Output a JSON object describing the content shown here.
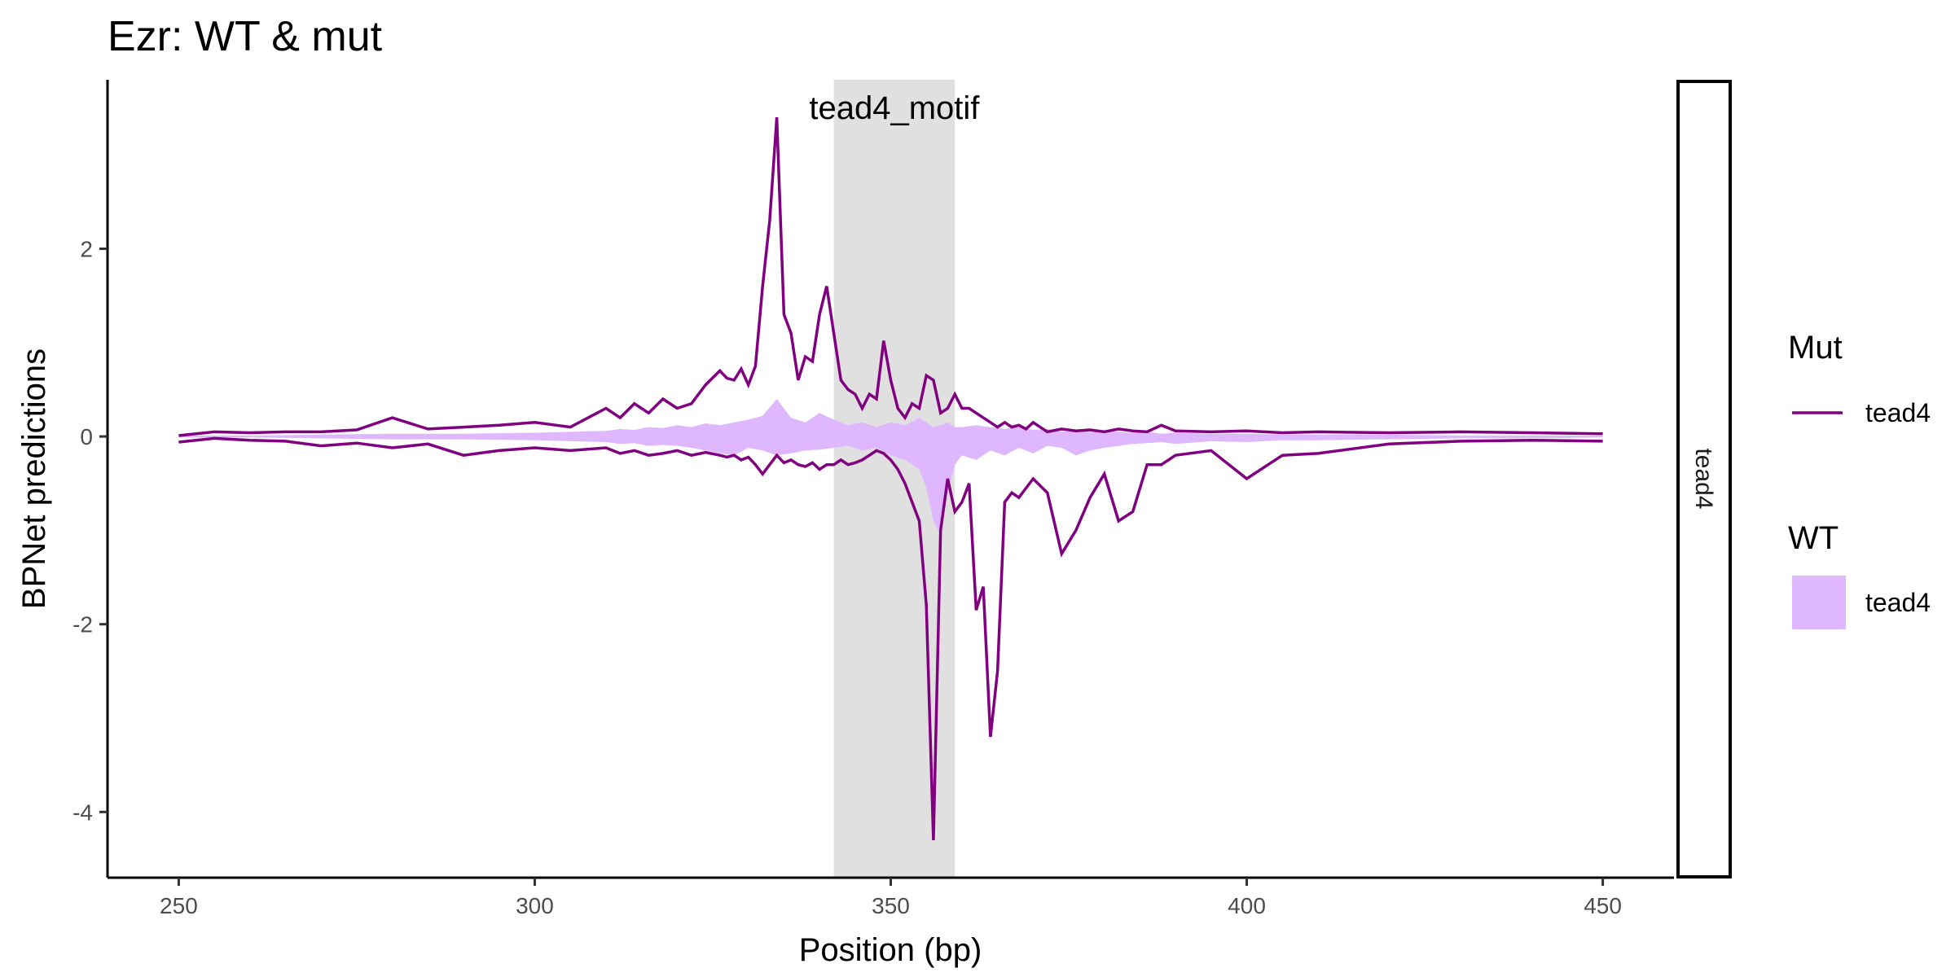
{
  "chart_data": {
    "type": "line",
    "title": "Ezr: WT & mut",
    "xlabel": "Position (bp)",
    "ylabel": "BPNet predictions",
    "xlim": [
      240,
      460
    ],
    "ylim": [
      -4.7,
      3.8
    ],
    "x_ticks": [
      250,
      300,
      350,
      400,
      450
    ],
    "y_ticks": [
      -4,
      -2,
      0,
      2
    ],
    "y_tick_labels": [
      "-4",
      "-2",
      "0",
      "2"
    ],
    "grid": false,
    "legend_position": "right",
    "facet_label": "tead4",
    "colors": {
      "mut": "#800080",
      "wt": "#dfb7ff",
      "motif_region": "#e0e0e0"
    },
    "annotation": {
      "label": "tead4_motif",
      "x_start": 342,
      "x_end": 359
    },
    "legend": {
      "mut": {
        "title": "Mut",
        "entry": "tead4"
      },
      "wt": {
        "title": "WT",
        "entry": "tead4"
      }
    },
    "series": [
      {
        "name": "tead4",
        "group": "Mut",
        "style": "line",
        "x": [
          250,
          255,
          260,
          265,
          270,
          275,
          280,
          285,
          290,
          295,
          300,
          305,
          310,
          312,
          314,
          316,
          318,
          320,
          322,
          324,
          326,
          327,
          328,
          329,
          330,
          331,
          332,
          333,
          334,
          335,
          336,
          337,
          338,
          339,
          340,
          341,
          342,
          343,
          344,
          345,
          346,
          347,
          348,
          349,
          350,
          351,
          352,
          353,
          354,
          355,
          356,
          357,
          358,
          359,
          360,
          361,
          362,
          363,
          364,
          365,
          366,
          367,
          368,
          369,
          370,
          372,
          374,
          376,
          378,
          380,
          382,
          384,
          386,
          388,
          390,
          395,
          400,
          405,
          410,
          420,
          430,
          440,
          450
        ],
        "upper": [
          0.01,
          0.05,
          0.04,
          0.05,
          0.05,
          0.07,
          0.2,
          0.08,
          0.1,
          0.12,
          0.15,
          0.1,
          0.3,
          0.2,
          0.35,
          0.25,
          0.4,
          0.3,
          0.35,
          0.55,
          0.7,
          0.62,
          0.6,
          0.72,
          0.55,
          0.75,
          1.6,
          2.3,
          3.4,
          1.3,
          1.1,
          0.6,
          0.85,
          0.8,
          1.3,
          1.6,
          1.1,
          0.6,
          0.5,
          0.45,
          0.3,
          0.45,
          0.4,
          1.02,
          0.6,
          0.3,
          0.2,
          0.35,
          0.3,
          0.65,
          0.6,
          0.25,
          0.3,
          0.45,
          0.3,
          0.3,
          0.25,
          0.2,
          0.15,
          0.1,
          0.15,
          0.1,
          0.12,
          0.08,
          0.15,
          0.05,
          0.08,
          0.06,
          0.07,
          0.05,
          0.08,
          0.06,
          0.05,
          0.12,
          0.06,
          0.05,
          0.06,
          0.04,
          0.05,
          0.04,
          0.05,
          0.04,
          0.03
        ],
        "lower": [
          -0.06,
          -0.02,
          -0.04,
          -0.05,
          -0.1,
          -0.07,
          -0.12,
          -0.08,
          -0.2,
          -0.15,
          -0.12,
          -0.15,
          -0.12,
          -0.18,
          -0.15,
          -0.2,
          -0.18,
          -0.15,
          -0.2,
          -0.17,
          -0.2,
          -0.22,
          -0.2,
          -0.25,
          -0.22,
          -0.3,
          -0.4,
          -0.3,
          -0.2,
          -0.28,
          -0.25,
          -0.3,
          -0.32,
          -0.28,
          -0.35,
          -0.3,
          -0.3,
          -0.25,
          -0.3,
          -0.28,
          -0.25,
          -0.2,
          -0.15,
          -0.18,
          -0.25,
          -0.35,
          -0.5,
          -0.7,
          -0.9,
          -1.8,
          -4.3,
          -1.0,
          -0.45,
          -0.8,
          -0.7,
          -0.5,
          -1.85,
          -1.6,
          -3.2,
          -2.5,
          -0.7,
          -0.6,
          -0.65,
          -0.55,
          -0.45,
          -0.6,
          -1.25,
          -1.0,
          -0.65,
          -0.4,
          -0.9,
          -0.8,
          -0.3,
          -0.3,
          -0.2,
          -0.15,
          -0.45,
          -0.2,
          -0.18,
          -0.08,
          -0.05,
          -0.04,
          -0.05
        ]
      },
      {
        "name": "tead4",
        "group": "WT",
        "style": "area",
        "x": [
          250,
          260,
          270,
          280,
          290,
          300,
          305,
          310,
          312,
          314,
          316,
          318,
          320,
          322,
          324,
          326,
          328,
          330,
          332,
          334,
          336,
          338,
          340,
          342,
          344,
          346,
          348,
          350,
          352,
          354,
          355,
          356,
          357,
          358,
          359,
          360,
          362,
          364,
          366,
          368,
          370,
          372,
          374,
          376,
          378,
          380,
          382,
          384,
          386,
          388,
          390,
          395,
          400,
          405,
          410,
          420,
          430,
          440,
          450
        ],
        "upper": [
          0.01,
          0.01,
          0.02,
          0.03,
          0.03,
          0.04,
          0.05,
          0.06,
          0.08,
          0.07,
          0.1,
          0.09,
          0.12,
          0.1,
          0.14,
          0.12,
          0.15,
          0.18,
          0.22,
          0.4,
          0.2,
          0.15,
          0.25,
          0.18,
          0.12,
          0.15,
          0.1,
          0.15,
          0.12,
          0.2,
          0.15,
          0.1,
          0.12,
          0.15,
          0.1,
          0.1,
          0.12,
          0.1,
          0.08,
          0.1,
          0.07,
          0.08,
          0.05,
          0.06,
          0.05,
          0.06,
          0.05,
          0.04,
          0.05,
          0.03,
          0.04,
          0.03,
          0.03,
          0.02,
          0.02,
          0.02,
          0.01,
          0.01,
          0.01
        ],
        "lower": [
          -0.01,
          -0.01,
          -0.02,
          -0.03,
          -0.03,
          -0.04,
          -0.05,
          -0.06,
          -0.08,
          -0.07,
          -0.1,
          -0.09,
          -0.1,
          -0.12,
          -0.15,
          -0.18,
          -0.2,
          -0.12,
          -0.15,
          -0.2,
          -0.18,
          -0.15,
          -0.14,
          -0.12,
          -0.1,
          -0.15,
          -0.12,
          -0.2,
          -0.25,
          -0.35,
          -0.55,
          -0.9,
          -1.05,
          -0.6,
          -0.3,
          -0.2,
          -0.25,
          -0.15,
          -0.2,
          -0.12,
          -0.18,
          -0.1,
          -0.12,
          -0.2,
          -0.15,
          -0.12,
          -0.1,
          -0.08,
          -0.07,
          -0.06,
          -0.08,
          -0.05,
          -0.06,
          -0.04,
          -0.04,
          -0.03,
          -0.02,
          -0.02,
          -0.01
        ]
      }
    ]
  }
}
